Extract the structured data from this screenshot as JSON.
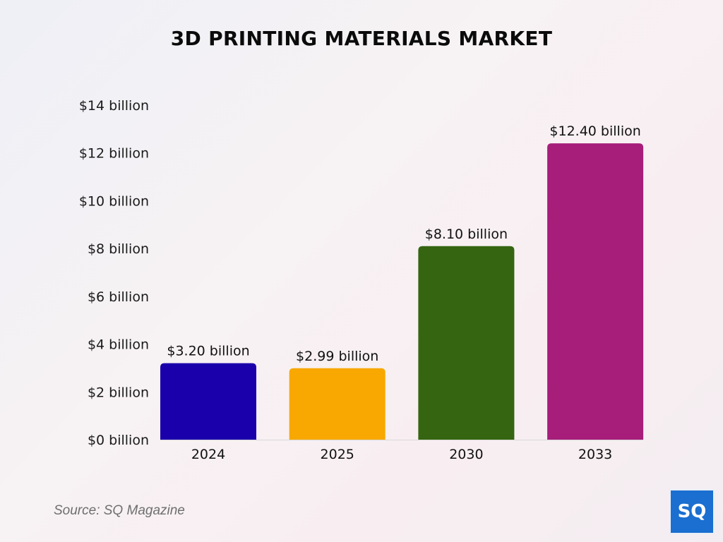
{
  "page": {
    "title": "3D PRINTING MATERIALS MARKET",
    "source": "Source: SQ Magazine",
    "logo_text": "SQ"
  },
  "chart_data": {
    "type": "bar",
    "title": "3D PRINTING MATERIALS MARKET",
    "xlabel": "",
    "ylabel": "",
    "categories": [
      "2024",
      "2025",
      "2030",
      "2033"
    ],
    "values": [
      3.2,
      2.99,
      8.1,
      12.4
    ],
    "data_labels": [
      "$3.20 billion",
      "$2.99 billion",
      "$8.10 billion",
      "$12.40 billion"
    ],
    "colors": [
      "#1a00aa",
      "#f8a800",
      "#356511",
      "#a61e7a"
    ],
    "ylim": [
      0,
      14
    ],
    "yticks": [
      0,
      2,
      4,
      6,
      8,
      10,
      12,
      14
    ],
    "ytick_labels": [
      "$0 billion",
      "$2 billion",
      "$4 billion",
      "$6 billion",
      "$8 billion",
      "$10 billion",
      "$12 billion",
      "$14 billion"
    ],
    "grid": false,
    "legend": "none"
  }
}
